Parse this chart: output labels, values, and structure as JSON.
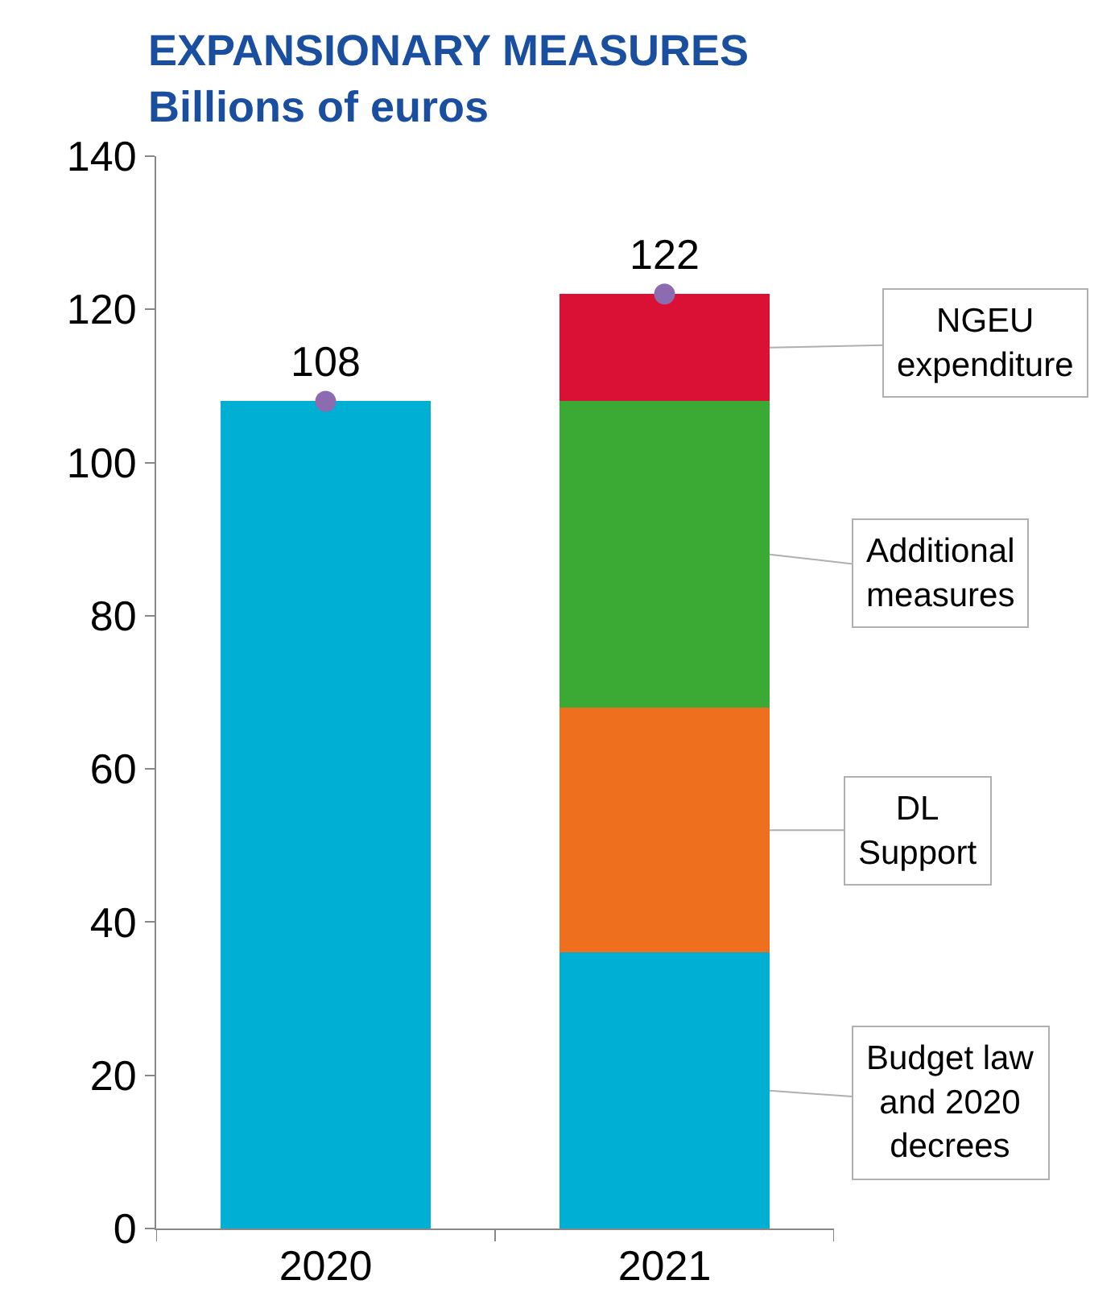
{
  "chart_data": {
    "type": "bar",
    "title": "EXPANSIONARY MEASURES\nBillions of euros",
    "categories": [
      "2020",
      "2021"
    ],
    "stacked": true,
    "legend": false,
    "ylim": [
      0,
      140
    ],
    "yticks": [
      0,
      20,
      40,
      60,
      80,
      100,
      120,
      140
    ],
    "series": [
      {
        "name": "Budget law\nand 2020\ndecrees",
        "color": "#00b0d4",
        "values": [
          108,
          36
        ]
      },
      {
        "name": "DL\nSupport",
        "color": "#ee701e",
        "values": [
          null,
          32
        ]
      },
      {
        "name": "Additional\nmeasures",
        "color": "#3aaa35",
        "values": [
          null,
          40
        ]
      },
      {
        "name": "NGEU\nexpenditure",
        "color": "#da1034",
        "values": [
          null,
          14
        ]
      },
      {
        "type": "scatter",
        "color": "#8c6bb1",
        "values": [
          108,
          122
        ],
        "value_labels": [
          "108",
          "122"
        ],
        "marker": "circle"
      }
    ]
  }
}
